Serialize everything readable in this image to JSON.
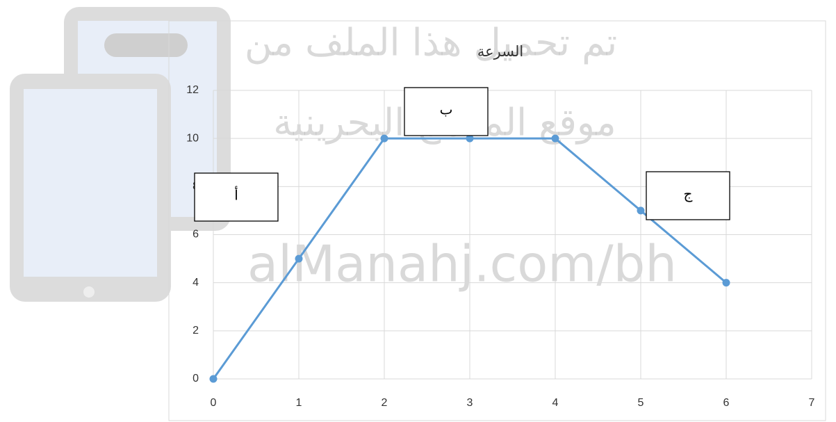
{
  "chart_data": {
    "type": "line",
    "title": "السرعة",
    "x": [
      0,
      1,
      2,
      3,
      4,
      5,
      6
    ],
    "series": [
      {
        "color": "#5b9bd5",
        "values": [
          0,
          5,
          10,
          10,
          10,
          7,
          4
        ]
      }
    ],
    "xlim": [
      0,
      7
    ],
    "xticks": [
      0,
      1,
      2,
      3,
      4,
      5,
      6,
      7
    ],
    "ylim": [
      0,
      12
    ],
    "yticks": [
      0,
      2,
      4,
      6,
      8,
      10,
      12
    ],
    "grid": true,
    "annotations": [
      "أ",
      "ب",
      "ج"
    ]
  },
  "watermark": {
    "lines": [
      "تم تحميل هذا الملف من",
      "موقع المناهج البحرينية",
      "alManahj.com/bh"
    ]
  }
}
